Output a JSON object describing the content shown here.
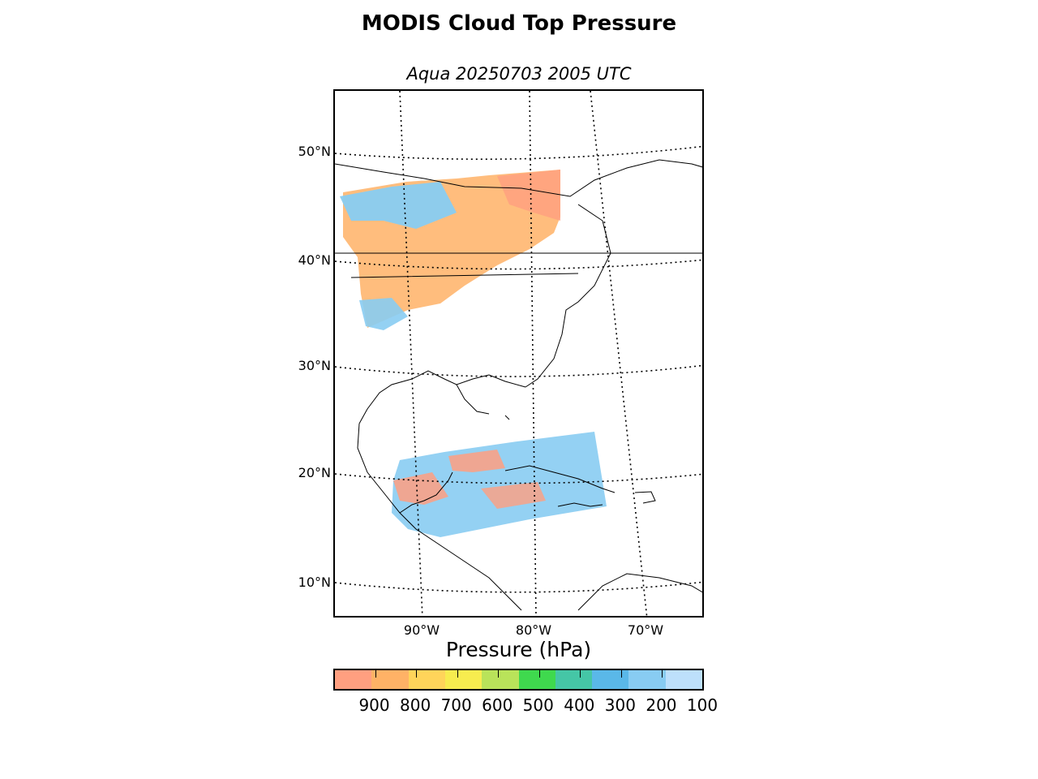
{
  "figure": {
    "title": "MODIS Cloud Top Pressure",
    "subtitle": "Aqua 20250703 2005 UTC"
  },
  "map": {
    "latitude_labels": [
      "50°N",
      "40°N",
      "30°N",
      "20°N",
      "10°N"
    ],
    "longitude_labels": [
      "90°W",
      "80°W",
      "70°W"
    ],
    "graticule_style": "dotted",
    "coastline_color": "#000000"
  },
  "colorbar": {
    "title": "Pressure (hPa)",
    "tick_labels": [
      "900",
      "800",
      "700",
      "600",
      "500",
      "400",
      "300",
      "200",
      "100"
    ],
    "range": [
      1000,
      100
    ],
    "colors": [
      "#ff9f80",
      "#ffb266",
      "#ffd45a",
      "#f7ec4f",
      "#b9e35a",
      "#3fd94e",
      "#45c6a6",
      "#5ab8e8",
      "#88ccf2",
      "#bde0fb"
    ]
  }
}
